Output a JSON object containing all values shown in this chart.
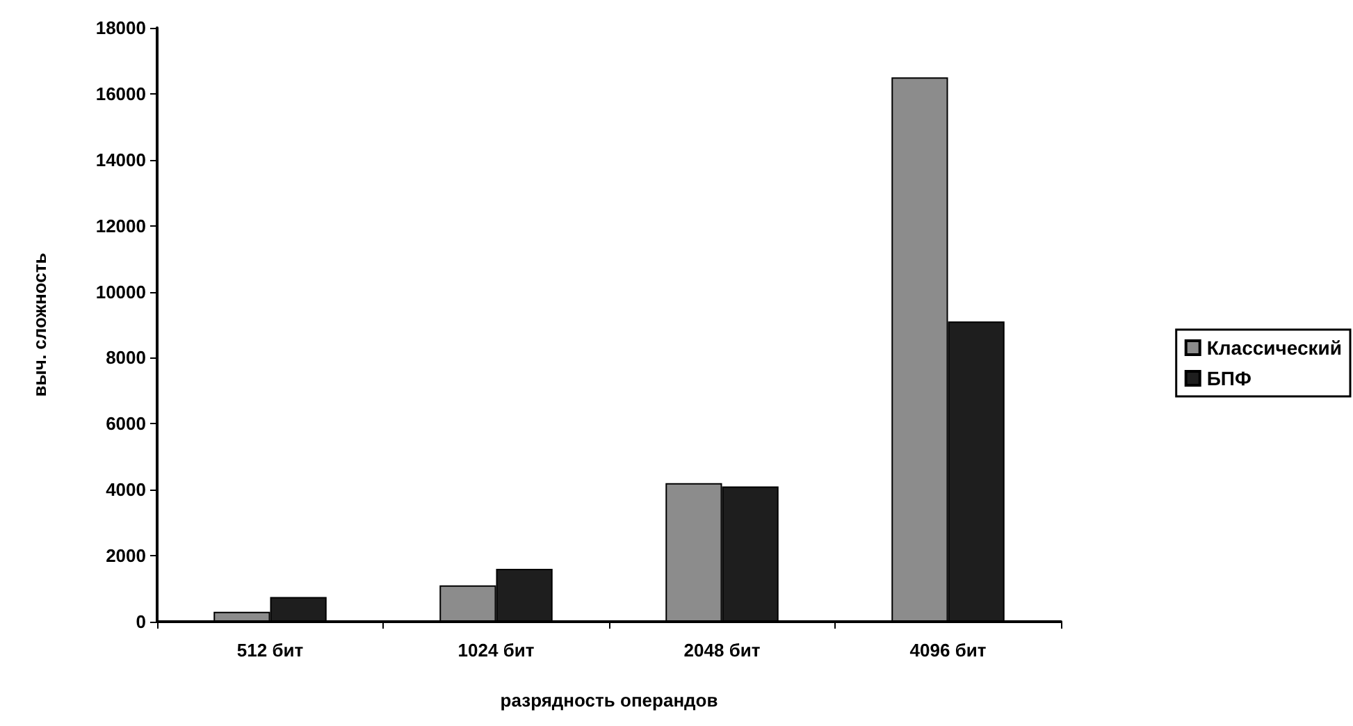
{
  "chart_data": {
    "type": "bar",
    "xlabel": "разрядность операндов",
    "ylabel": "выч. сложность",
    "categories": [
      "512 бит",
      "1024 бит",
      "2048 бит",
      "4096 бит"
    ],
    "series": [
      {
        "name": "Классический",
        "color": "#8c8c8c",
        "values": [
          300,
          1100,
          4200,
          16500
        ]
      },
      {
        "name": "БПФ",
        "color": "#1e1e1e",
        "values": [
          750,
          1600,
          4100,
          9100
        ]
      }
    ],
    "ylim": [
      0,
      18000
    ],
    "yticks": [
      0,
      2000,
      4000,
      6000,
      8000,
      10000,
      12000,
      14000,
      16000,
      18000
    ],
    "grid": false,
    "legend": "right"
  }
}
